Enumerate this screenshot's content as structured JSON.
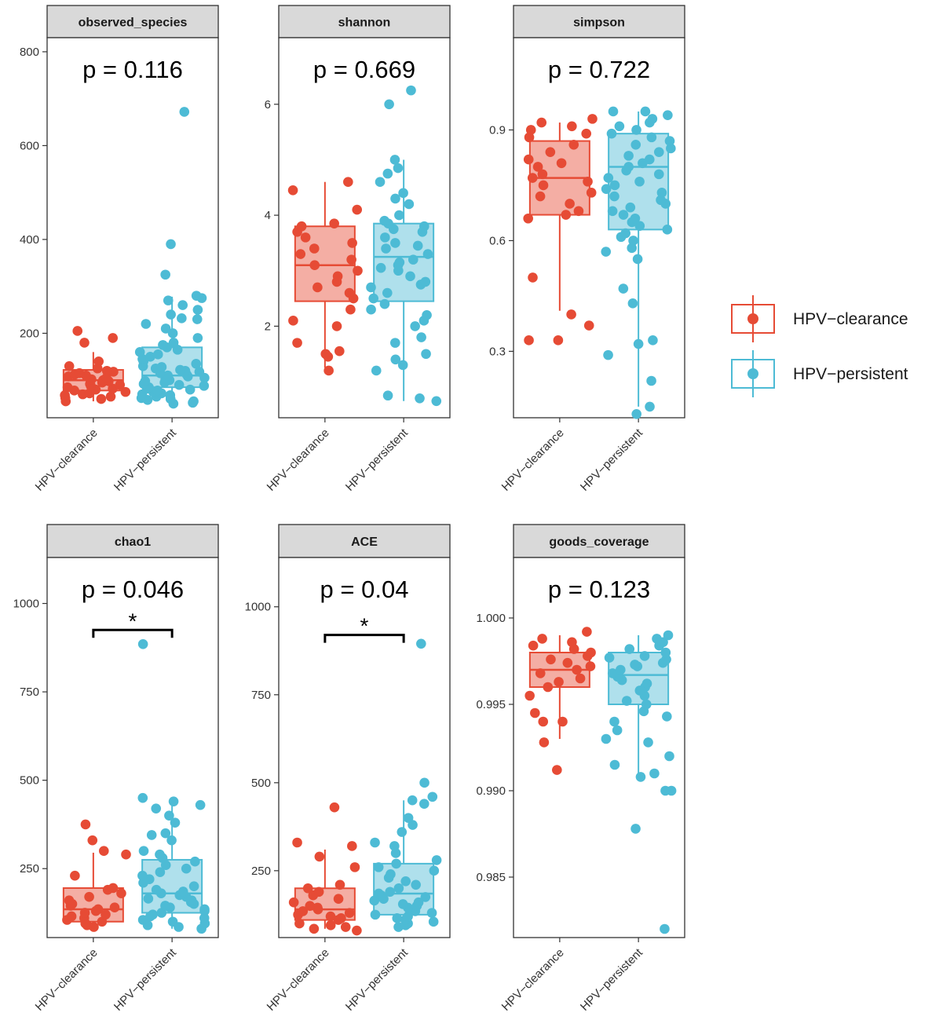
{
  "colors": {
    "clearance": "#E64B35",
    "persistent": "#4DBBD5",
    "strip_fill": "#D9D9D9",
    "panel_border": "#333333"
  },
  "legend": {
    "items": [
      {
        "label": "HPV−clearance",
        "color": "#E64B35"
      },
      {
        "label": "HPV−persistent",
        "color": "#4DBBD5"
      }
    ]
  },
  "chart_data": [
    {
      "type": "box",
      "title": "observed_species",
      "p_label": "p = 0.116",
      "significance": null,
      "categories": [
        "HPV−clearance",
        "HPV−persistent"
      ],
      "ylim": [
        20,
        830
      ],
      "yticks": [
        200,
        400,
        600,
        800
      ],
      "ytick_labels": [
        "200",
        "400",
        "600",
        "800"
      ],
      "boxes": [
        {
          "q1": 78,
          "median": 100,
          "q3": 122,
          "whisker_low": 55,
          "whisker_high": 160
        },
        {
          "q1": 85,
          "median": 110,
          "q3": 170,
          "whisker_low": 50,
          "whisker_high": 278
        }
      ],
      "points": [
        [
          55,
          60,
          62,
          65,
          68,
          70,
          72,
          75,
          78,
          80,
          82,
          85,
          88,
          90,
          92,
          95,
          98,
          100,
          102,
          105,
          108,
          110,
          112,
          115,
          118,
          120,
          125,
          130,
          140,
          180,
          190,
          205
        ],
        [
          50,
          52,
          55,
          58,
          60,
          62,
          65,
          68,
          70,
          72,
          75,
          78,
          80,
          82,
          85,
          88,
          90,
          92,
          95,
          98,
          100,
          102,
          105,
          108,
          110,
          112,
          115,
          118,
          120,
          122,
          125,
          128,
          130,
          135,
          140,
          145,
          150,
          155,
          160,
          165,
          170,
          175,
          180,
          190,
          200,
          210,
          220,
          230,
          232,
          240,
          250,
          260,
          270,
          275,
          280,
          325,
          390,
          672
        ]
      ]
    },
    {
      "type": "box",
      "title": "shannon",
      "p_label": "p = 0.669",
      "significance": null,
      "categories": [
        "HPV−clearance",
        "HPV−persistent"
      ],
      "ylim": [
        0.35,
        7.2
      ],
      "yticks": [
        2,
        4,
        6
      ],
      "ytick_labels": [
        "2",
        "4",
        "6"
      ],
      "boxes": [
        {
          "q1": 2.45,
          "median": 3.1,
          "q3": 3.8,
          "whisker_low": 1.25,
          "whisker_high": 4.6
        },
        {
          "q1": 2.45,
          "median": 3.25,
          "q3": 3.85,
          "whisker_low": 0.65,
          "whisker_high": 5.0
        }
      ],
      "points": [
        [
          1.2,
          1.45,
          1.5,
          1.55,
          1.7,
          2.0,
          2.1,
          2.3,
          2.5,
          2.6,
          2.7,
          2.8,
          2.9,
          3.0,
          3.1,
          3.2,
          3.3,
          3.4,
          3.5,
          3.6,
          3.7,
          3.8,
          3.85,
          4.1,
          4.45,
          4.6
        ],
        [
          0.65,
          0.7,
          0.75,
          1.2,
          1.3,
          1.4,
          1.5,
          1.7,
          1.8,
          2.0,
          2.1,
          2.2,
          2.3,
          2.4,
          2.5,
          2.6,
          2.7,
          2.75,
          2.8,
          2.9,
          3.0,
          3.05,
          3.1,
          3.15,
          3.2,
          3.3,
          3.4,
          3.45,
          3.5,
          3.6,
          3.7,
          3.75,
          3.8,
          3.85,
          3.9,
          4.0,
          4.2,
          4.3,
          4.4,
          4.6,
          4.75,
          4.85,
          5.0,
          6.0,
          6.25
        ]
      ]
    },
    {
      "type": "box",
      "title": "simpson",
      "p_label": "p = 0.722",
      "significance": null,
      "categories": [
        "HPV−clearance",
        "HPV−persistent"
      ],
      "ylim": [
        0.12,
        1.15
      ],
      "yticks": [
        0.3,
        0.6,
        0.9
      ],
      "ytick_labels": [
        "0.3",
        "0.6",
        "0.9"
      ],
      "boxes": [
        {
          "q1": 0.67,
          "median": 0.77,
          "q3": 0.87,
          "whisker_low": 0.41,
          "whisker_high": 0.92
        },
        {
          "q1": 0.63,
          "median": 0.8,
          "q3": 0.89,
          "whisker_low": 0.15,
          "whisker_high": 0.95
        }
      ],
      "points": [
        [
          0.33,
          0.33,
          0.37,
          0.4,
          0.5,
          0.66,
          0.67,
          0.68,
          0.7,
          0.72,
          0.73,
          0.75,
          0.76,
          0.77,
          0.78,
          0.8,
          0.81,
          0.82,
          0.84,
          0.86,
          0.88,
          0.89,
          0.9,
          0.91,
          0.92,
          0.93
        ],
        [
          0.13,
          0.15,
          0.22,
          0.29,
          0.32,
          0.33,
          0.43,
          0.47,
          0.55,
          0.57,
          0.58,
          0.6,
          0.61,
          0.62,
          0.63,
          0.64,
          0.65,
          0.66,
          0.67,
          0.68,
          0.69,
          0.7,
          0.71,
          0.72,
          0.73,
          0.74,
          0.75,
          0.76,
          0.77,
          0.78,
          0.79,
          0.8,
          0.81,
          0.82,
          0.83,
          0.84,
          0.85,
          0.86,
          0.87,
          0.88,
          0.89,
          0.9,
          0.91,
          0.92,
          0.93,
          0.94,
          0.95,
          0.95
        ]
      ]
    },
    {
      "type": "box",
      "title": "chao1",
      "p_label": "p = 0.046",
      "significance": {
        "star": "*",
        "y": 925
      },
      "categories": [
        "HPV−clearance",
        "HPV−persistent"
      ],
      "ylim": [
        55,
        1130
      ],
      "yticks": [
        250,
        500,
        750,
        1000
      ],
      "ytick_labels": [
        "250",
        "500",
        "750",
        "1000"
      ],
      "boxes": [
        {
          "q1": 100,
          "median": 135,
          "q3": 195,
          "whisker_low": 85,
          "whisker_high": 295
        },
        {
          "q1": 125,
          "median": 180,
          "q3": 275,
          "whisker_low": 80,
          "whisker_high": 440
        }
      ],
      "points": [
        [
          85,
          90,
          95,
          100,
          105,
          110,
          115,
          120,
          125,
          130,
          135,
          140,
          145,
          150,
          160,
          170,
          180,
          190,
          195,
          230,
          290,
          300,
          330,
          375
        ],
        [
          80,
          85,
          90,
          95,
          100,
          105,
          110,
          115,
          120,
          125,
          130,
          135,
          140,
          145,
          150,
          155,
          160,
          165,
          170,
          175,
          180,
          185,
          190,
          200,
          210,
          220,
          230,
          240,
          250,
          260,
          270,
          280,
          290,
          300,
          330,
          345,
          350,
          380,
          400,
          420,
          430,
          440,
          450,
          885
        ]
      ]
    },
    {
      "type": "box",
      "title": "ACE",
      "p_label": "p = 0.04",
      "significance": {
        "star": "*",
        "y": 920
      },
      "categories": [
        "HPV−clearance",
        "HPV−persistent"
      ],
      "ylim": [
        60,
        1140
      ],
      "yticks": [
        250,
        500,
        750,
        1000
      ],
      "ytick_labels": [
        "250",
        "500",
        "750",
        "1000"
      ],
      "boxes": [
        {
          "q1": 110,
          "median": 140,
          "q3": 200,
          "whisker_low": 85,
          "whisker_high": 310
        },
        {
          "q1": 125,
          "median": 185,
          "q3": 270,
          "whisker_low": 90,
          "whisker_high": 450
        }
      ],
      "points": [
        [
          80,
          85,
          90,
          95,
          100,
          110,
          115,
          120,
          125,
          130,
          135,
          140,
          145,
          150,
          160,
          170,
          180,
          190,
          200,
          210,
          260,
          290,
          320,
          330,
          430
        ],
        [
          90,
          95,
          100,
          105,
          110,
          115,
          120,
          125,
          130,
          135,
          140,
          145,
          150,
          155,
          160,
          165,
          170,
          175,
          180,
          185,
          190,
          200,
          210,
          220,
          230,
          240,
          250,
          260,
          270,
          280,
          300,
          320,
          330,
          360,
          380,
          400,
          440,
          450,
          460,
          500,
          895
        ]
      ]
    },
    {
      "type": "box",
      "title": "goods_coverage",
      "p_label": "p = 0.123",
      "significance": null,
      "categories": [
        "HPV−clearance",
        "HPV−persistent"
      ],
      "ylim": [
        0.9815,
        1.0035
      ],
      "yticks": [
        0.985,
        0.99,
        0.995,
        1.0
      ],
      "ytick_labels": [
        "0.985",
        "0.990",
        "0.995",
        "1.000"
      ],
      "boxes": [
        {
          "q1": 0.996,
          "median": 0.997,
          "q3": 0.998,
          "whisker_low": 0.993,
          "whisker_high": 0.999
        },
        {
          "q1": 0.995,
          "median": 0.9967,
          "q3": 0.998,
          "whisker_low": 0.991,
          "whisker_high": 0.999
        }
      ],
      "points": [
        [
          0.9912,
          0.9928,
          0.994,
          0.994,
          0.9945,
          0.9955,
          0.996,
          0.9963,
          0.9965,
          0.9968,
          0.997,
          0.9972,
          0.9974,
          0.9976,
          0.9978,
          0.998,
          0.9982,
          0.9984,
          0.9986,
          0.9988,
          0.9992
        ],
        [
          0.982,
          0.9878,
          0.99,
          0.99,
          0.9908,
          0.991,
          0.9915,
          0.992,
          0.9928,
          0.993,
          0.9935,
          0.994,
          0.9943,
          0.9946,
          0.995,
          0.9952,
          0.9955,
          0.9958,
          0.996,
          0.9962,
          0.9964,
          0.9966,
          0.9968,
          0.997,
          0.9972,
          0.9973,
          0.9974,
          0.9976,
          0.9977,
          0.9978,
          0.998,
          0.9982,
          0.9984,
          0.9986,
          0.9988,
          0.999
        ]
      ]
    }
  ]
}
